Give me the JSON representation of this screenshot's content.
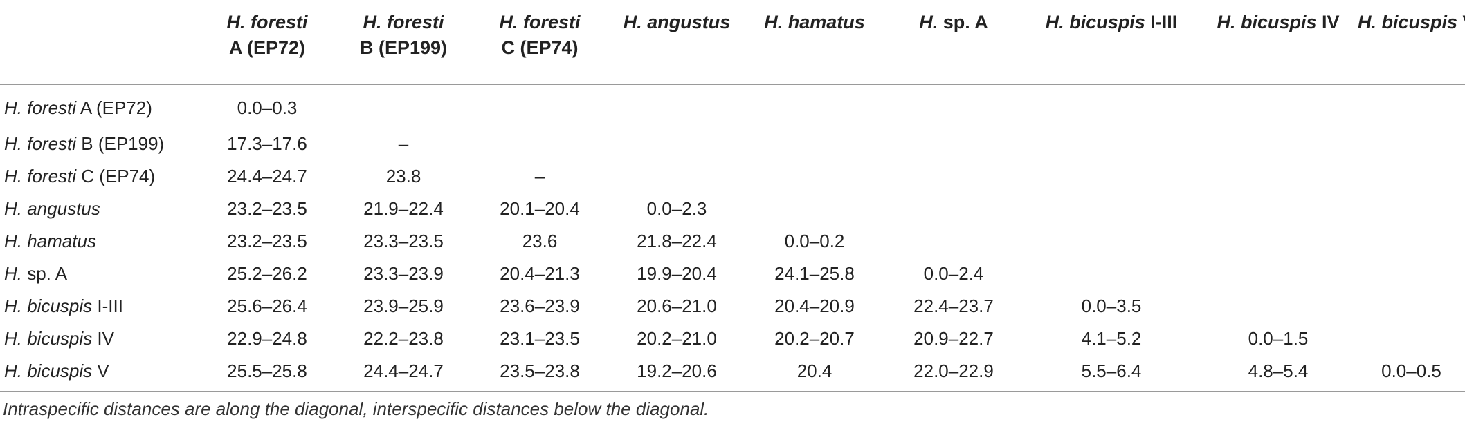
{
  "columns": [
    {
      "species": "H. foresti",
      "suffix": "",
      "line2": "A (EP72)"
    },
    {
      "species": "H. foresti",
      "suffix": "",
      "line2": "B (EP199)"
    },
    {
      "species": "H. foresti",
      "suffix": "",
      "line2": "C (EP74)"
    },
    {
      "species": "H. angustus",
      "suffix": "",
      "line2": ""
    },
    {
      "species": "H. hamatus",
      "suffix": "",
      "line2": ""
    },
    {
      "species": "H.",
      "suffix": " sp. A",
      "line2": ""
    },
    {
      "species": "H. bicuspis",
      "suffix": " I-III",
      "line2": ""
    },
    {
      "species": "H. bicuspis",
      "suffix": " IV",
      "line2": ""
    },
    {
      "species": "H. bicuspis",
      "suffix": " V",
      "line2": ""
    }
  ],
  "rows": [
    {
      "species": "H. foresti",
      "suffix": " A (EP72)",
      "cells": [
        "0.0–0.3",
        "",
        "",
        "",
        "",
        "",
        "",
        "",
        ""
      ]
    },
    {
      "species": "H. foresti",
      "suffix": " B (EP199)",
      "cells": [
        "17.3–17.6",
        "–",
        "",
        "",
        "",
        "",
        "",
        "",
        ""
      ]
    },
    {
      "species": "H. foresti",
      "suffix": " C (EP74)",
      "cells": [
        "24.4–24.7",
        "23.8",
        "–",
        "",
        "",
        "",
        "",
        "",
        ""
      ]
    },
    {
      "species": "H. angustus",
      "suffix": "",
      "cells": [
        "23.2–23.5",
        "21.9–22.4",
        "20.1–20.4",
        "0.0–2.3",
        "",
        "",
        "",
        "",
        ""
      ]
    },
    {
      "species": "H. hamatus",
      "suffix": "",
      "cells": [
        "23.2–23.5",
        "23.3–23.5",
        "23.6",
        "21.8–22.4",
        "0.0–0.2",
        "",
        "",
        "",
        ""
      ]
    },
    {
      "species": "H.",
      "suffix": " sp. A",
      "cells": [
        "25.2–26.2",
        "23.3–23.9",
        "20.4–21.3",
        "19.9–20.4",
        "24.1–25.8",
        "0.0–2.4",
        "",
        "",
        ""
      ]
    },
    {
      "species": "H. bicuspis",
      "suffix": " I-III",
      "cells": [
        "25.6–26.4",
        "23.9–25.9",
        "23.6–23.9",
        "20.6–21.0",
        "20.4–20.9",
        "22.4–23.7",
        "0.0–3.5",
        "",
        ""
      ]
    },
    {
      "species": "H. bicuspis",
      "suffix": " IV",
      "cells": [
        "22.9–24.8",
        "22.2–23.8",
        "23.1–23.5",
        "20.2–21.0",
        "20.2–20.7",
        "20.9–22.7",
        "4.1–5.2",
        "0.0–1.5",
        ""
      ]
    },
    {
      "species": "H. bicuspis",
      "suffix": " V",
      "cells": [
        "25.5–25.8",
        "24.4–24.7",
        "23.5–23.8",
        "19.2–20.6",
        "20.4",
        "22.0–22.9",
        "5.5–6.4",
        "4.8–5.4",
        "0.0–0.5"
      ]
    }
  ],
  "footnote": "Intraspecific distances are along the diagonal, interspecific distances below the diagonal."
}
